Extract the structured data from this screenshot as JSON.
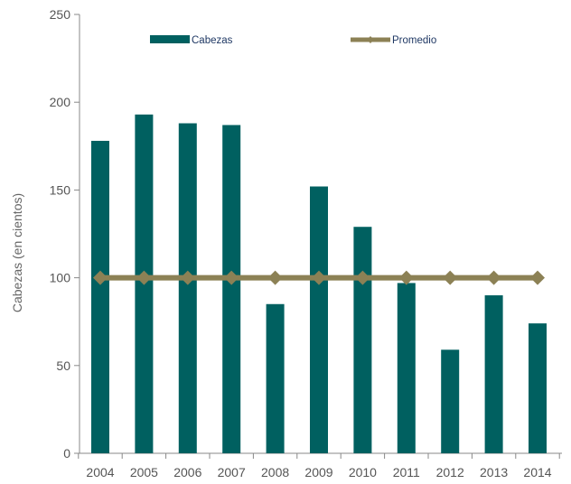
{
  "chart_data": {
    "type": "bar",
    "title": "",
    "xlabel": "",
    "ylabel": "Cabezas  (en cientos)",
    "categories": [
      "2004",
      "2005",
      "2006",
      "2007",
      "2008",
      "2009",
      "2010",
      "2011",
      "2012",
      "2013",
      "2014"
    ],
    "series": [
      {
        "name": "Cabezas",
        "type": "bar",
        "color": "#006060",
        "values": [
          178,
          193,
          188,
          187,
          85,
          152,
          129,
          97,
          59,
          90,
          74
        ]
      },
      {
        "name": "Promedio",
        "type": "line",
        "color": "#8c8155",
        "marker": "diamond",
        "values": [
          100,
          100,
          100,
          100,
          100,
          100,
          100,
          100,
          100,
          100,
          100
        ]
      }
    ],
    "ylim": [
      0,
      250
    ],
    "yticks": [
      0,
      50,
      100,
      150,
      200,
      250
    ],
    "grid": false,
    "legend_position": "top"
  }
}
